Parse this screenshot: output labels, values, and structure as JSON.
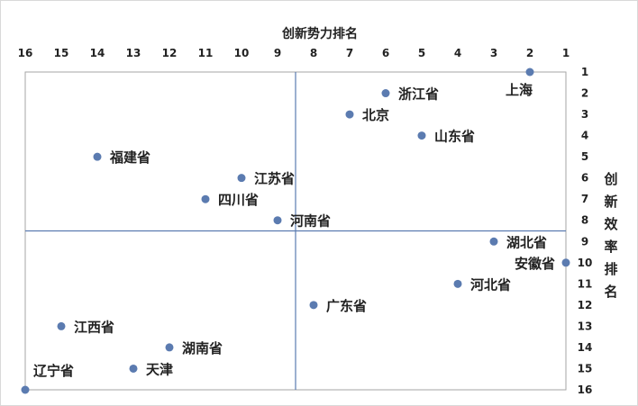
{
  "chart_data": {
    "type": "scatter",
    "xlabel": "创新势力排名",
    "ylabel": "创新效率排名",
    "xlim": [
      16,
      1
    ],
    "ylim": [
      1,
      16
    ],
    "x_reversed": true,
    "x_axis_position": "top",
    "y_axis_position": "right",
    "x_ticks": [
      "16",
      "15",
      "14",
      "13",
      "12",
      "11",
      "10",
      "9",
      "8",
      "7",
      "6",
      "5",
      "4",
      "3",
      "2",
      "1"
    ],
    "y_ticks": [
      "1",
      "2",
      "3",
      "4",
      "5",
      "6",
      "7",
      "8",
      "9",
      "10",
      "11",
      "12",
      "13",
      "14",
      "15",
      "16"
    ],
    "quadrant_dividers": {
      "x": 8.5,
      "y": 8.5
    },
    "grid": false,
    "point_color": "#5b7bb0",
    "points": [
      {
        "label": "上海",
        "x": 2,
        "y": 1,
        "label_pos": "below-left"
      },
      {
        "label": "浙江省",
        "x": 6,
        "y": 2,
        "label_pos": "right"
      },
      {
        "label": "北京",
        "x": 7,
        "y": 3,
        "label_pos": "right"
      },
      {
        "label": "山东省",
        "x": 5,
        "y": 4,
        "label_pos": "right"
      },
      {
        "label": "福建省",
        "x": 14,
        "y": 5,
        "label_pos": "right"
      },
      {
        "label": "江苏省",
        "x": 10,
        "y": 6,
        "label_pos": "right"
      },
      {
        "label": "四川省",
        "x": 11,
        "y": 7,
        "label_pos": "right"
      },
      {
        "label": "河南省",
        "x": 9,
        "y": 8,
        "label_pos": "right"
      },
      {
        "label": "湖北省",
        "x": 3,
        "y": 9,
        "label_pos": "right"
      },
      {
        "label": "安徽省",
        "x": 1,
        "y": 10,
        "label_pos": "left"
      },
      {
        "label": "河北省",
        "x": 4,
        "y": 11,
        "label_pos": "right"
      },
      {
        "label": "广东省",
        "x": 8,
        "y": 12,
        "label_pos": "right"
      },
      {
        "label": "江西省",
        "x": 15,
        "y": 13,
        "label_pos": "right"
      },
      {
        "label": "湖南省",
        "x": 12,
        "y": 14,
        "label_pos": "right"
      },
      {
        "label": "天津",
        "x": 13,
        "y": 15,
        "label_pos": "right"
      },
      {
        "label": "辽宁省",
        "x": 16,
        "y": 16,
        "label_pos": "above-right"
      }
    ]
  }
}
